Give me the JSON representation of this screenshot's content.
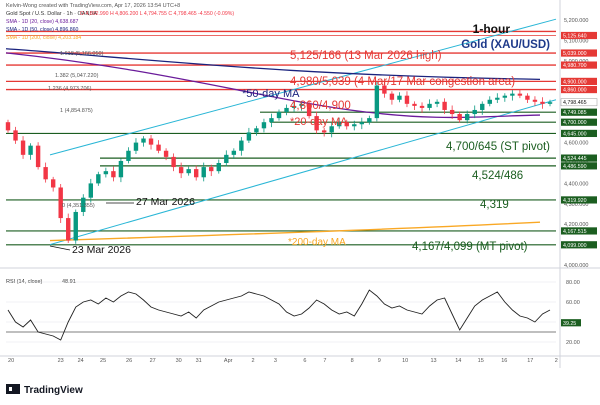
{
  "header": {
    "creator": "Kelvin-Wong created with TradingView.com, Apr 17, 2026 13:54 UTC+8",
    "symbol_line": "Gold Spot / U.S. Dollar · 1h · OANDA",
    "ohlc": "O 4,802.990  H 4,806.200  L 4,794.755  C 4,798.465  -4.550 (-0.09%)",
    "sma20": "SMA - 1D (20, close)  4,638.687",
    "sma50": "SMA - 1D (50, close)  4,896.860",
    "sma200": "SMA - 1D (200, close)  4,203.184",
    "fib_1618": "1.618 (5,166.050)"
  },
  "chart_title": {
    "timeframe": "1-hour",
    "instrument": "Gold (XAU/USD)"
  },
  "colors": {
    "candle_up": "#089981",
    "candle_down": "#f23645",
    "resistance": "#e53935",
    "support": "#1b5e20",
    "channel": "#29b6d6",
    "ma20": "#6a1b9a",
    "ma50": "#1a237e",
    "ma200": "#f9a825",
    "rsi": "#212121"
  },
  "annotations": {
    "r1": "5,125/166 (13 Mar 2026 high)",
    "r2": "4,980/5,039 (4 Mar/17 Mar congestion area)",
    "r3": "4,860/4,900",
    "ma50": "*50-day MA",
    "ma20": "*20-day MA",
    "ma200": "*200-day MA",
    "s1": "4,700/645 (ST pivot)",
    "s2": "4,524/486",
    "s3": "4,319",
    "s4": "4,167/4,099 (MT pivot)",
    "low1": "23 Mar 2026",
    "low2": "27 Mar 2026"
  },
  "fib_labels": {
    "f1382": "1.382 (5,047.220)",
    "f1236": "1.236 (4,973.706)",
    "f1": "1 (4,854.875)",
    "f0": "0 (4,351.355)"
  },
  "y_axis": {
    "unit": "USD",
    "ticks": [
      "5,200.000",
      "5,100.000",
      "5,000.000",
      "4,900.000",
      "4,800.000",
      "4,700.000",
      "4,600.000",
      "4,500.000",
      "4,400.000",
      "4,300.000",
      "4,200.000",
      "4,100.000",
      "4,000.000"
    ],
    "badges": [
      {
        "text": "5,125.640",
        "kind": "res"
      },
      {
        "text": "5,039.000",
        "kind": "res"
      },
      {
        "text": "4,980.700",
        "kind": "res"
      },
      {
        "text": "4,900.000",
        "kind": "res"
      },
      {
        "text": "4,860.000",
        "kind": "res"
      },
      {
        "text": "4,798.465",
        "kind": "price"
      },
      {
        "text": "4,749.085",
        "kind": "sup"
      },
      {
        "text": "4,700.000",
        "kind": "sup"
      },
      {
        "text": "4,645.000",
        "kind": "sup"
      },
      {
        "text": "4,524.445",
        "kind": "sup"
      },
      {
        "text": "4,486.590",
        "kind": "sup"
      },
      {
        "text": "4,319.920",
        "kind": "sup"
      },
      {
        "text": "4,167.515",
        "kind": "sup"
      },
      {
        "text": "4,099.000",
        "kind": "sup"
      }
    ]
  },
  "rsi": {
    "label": "RSI (14, close)",
    "value": "48.91",
    "ticks": [
      "80.00",
      "60.00",
      "40.00",
      "20.00"
    ],
    "last_badge": "39.25"
  },
  "x_axis": {
    "ticks": [
      "20",
      "23",
      "24",
      "25",
      "26",
      "27",
      "30",
      "31",
      "Apr",
      "2",
      "3",
      "6",
      "7",
      "8",
      "9",
      "10",
      "13",
      "14",
      "15",
      "16",
      "17",
      "2"
    ]
  },
  "footer": {
    "brand": "TradingView"
  },
  "chart_data": {
    "type": "candlestick",
    "title": "1-hour  Gold (XAU/USD)",
    "ylim": [
      4000,
      5250
    ],
    "x_range": [
      "2026-03-19",
      "2026-04-18"
    ],
    "closes": [
      4660,
      4610,
      4540,
      4585,
      4480,
      4420,
      4380,
      4230,
      4120,
      4260,
      4330,
      4400,
      4445,
      4460,
      4430,
      4510,
      4560,
      4600,
      4620,
      4590,
      4560,
      4530,
      4480,
      4450,
      4470,
      4430,
      4480,
      4460,
      4500,
      4540,
      4560,
      4610,
      4650,
      4670,
      4700,
      4720,
      4750,
      4770,
      4780,
      4790,
      4730,
      4660,
      4650,
      4680,
      4700,
      4680,
      4690,
      4700,
      4720,
      4880,
      4840,
      4810,
      4830,
      4790,
      4780,
      4770,
      4790,
      4800,
      4760,
      4740,
      4710,
      4740,
      4760,
      4790,
      4810,
      4820,
      4830,
      4840,
      4830,
      4810,
      4800,
      4790,
      4798
    ],
    "levels": {
      "resistance": [
        5125,
        5166,
        4980,
        5039,
        4860,
        4900
      ],
      "support": [
        4700,
        4645,
        4524,
        4486,
        4319,
        4167,
        4099
      ]
    },
    "rsi_values": [
      52,
      40,
      35,
      42,
      30,
      28,
      26,
      22,
      40,
      55,
      60,
      62,
      58,
      64,
      60,
      66,
      70,
      68,
      62,
      55,
      52,
      50,
      48,
      46,
      50,
      44,
      52,
      56,
      60,
      62,
      64,
      66,
      70,
      68,
      66,
      62,
      58,
      50,
      46,
      48,
      54,
      62,
      58,
      52,
      48,
      50,
      46,
      58,
      72,
      66,
      58,
      54,
      56,
      52,
      50,
      48,
      56,
      62,
      64,
      48,
      32,
      44,
      56,
      62,
      66,
      70,
      60,
      52,
      46,
      44,
      40,
      48,
      52
    ],
    "rsi_ylim": [
      10,
      90
    ]
  }
}
